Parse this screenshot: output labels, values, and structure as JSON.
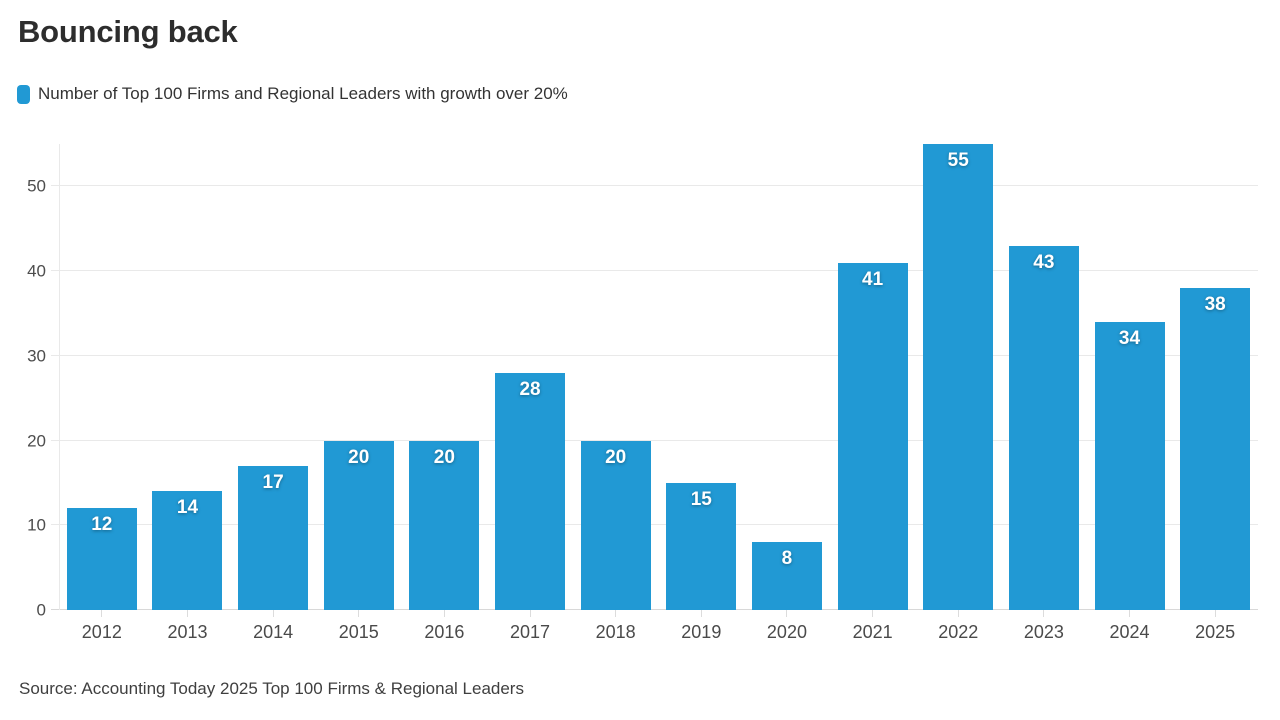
{
  "header": {
    "title": "Bouncing back"
  },
  "legend": {
    "label": "Number of Top 100 Firms and Regional Leaders with growth over 20%",
    "swatch_color": "#2199d4"
  },
  "chart_data": {
    "type": "bar",
    "title": "Bouncing back",
    "categories": [
      "2012",
      "2013",
      "2014",
      "2015",
      "2016",
      "2017",
      "2018",
      "2019",
      "2020",
      "2021",
      "2022",
      "2023",
      "2024",
      "2025"
    ],
    "values": [
      12,
      14,
      17,
      20,
      20,
      28,
      20,
      15,
      8,
      41,
      55,
      43,
      34,
      38
    ],
    "xlabel": "",
    "ylabel": "",
    "ylim": [
      0,
      55
    ],
    "yticks": [
      0,
      10,
      20,
      30,
      40,
      50
    ],
    "grid": true,
    "legend_position": "top-left",
    "bar_color": "#2199d4",
    "value_label_color": "#ffffff",
    "gridline_color": "#e9e9e9",
    "axis_label_color": "#4d4d4d"
  },
  "footer": {
    "source": "Source: Accounting Today 2025 Top 100 Firms & Regional Leaders"
  }
}
